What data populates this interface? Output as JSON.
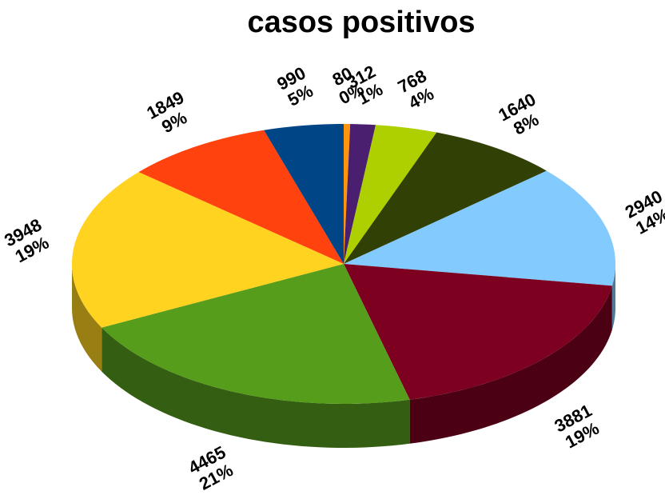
{
  "chart_data": {
    "type": "pie",
    "title": "casos positivos",
    "categories": [
      null,
      null,
      null,
      null,
      null,
      null,
      null,
      null,
      null,
      null
    ],
    "values": [
      80,
      312,
      768,
      1640,
      2940,
      3881,
      4465,
      3948,
      1849,
      990
    ],
    "percent_labels": [
      "0%",
      "1%",
      "4%",
      "8%",
      "14%",
      "19%",
      "21%",
      "19%",
      "9%",
      "5%"
    ],
    "colors": [
      "#ff950e",
      "#4b1f6f",
      "#aecf00",
      "#314004",
      "#83caff",
      "#7e0021",
      "#579d1c",
      "#ffd320",
      "#ff420e",
      "#004586"
    ]
  }
}
